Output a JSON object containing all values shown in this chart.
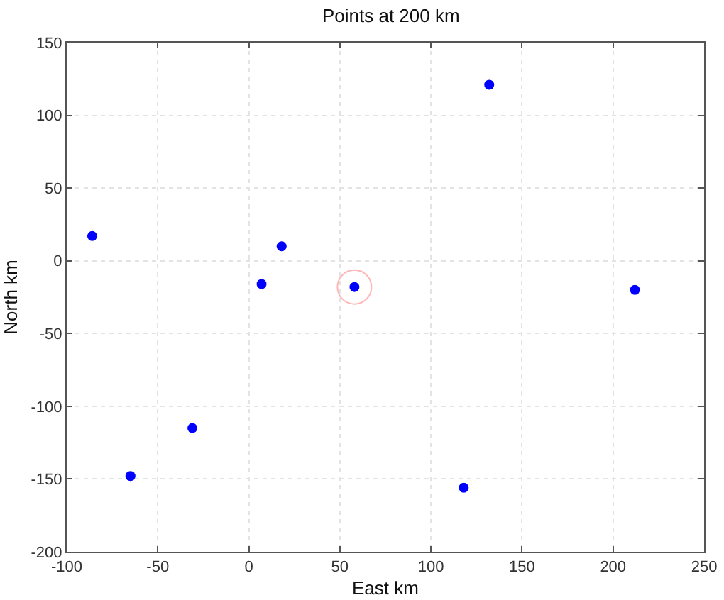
{
  "chart_data": {
    "type": "scatter",
    "title": "Points at 200 km",
    "xlabel": "East km",
    "ylabel": "North km",
    "xlim": [
      -100,
      250
    ],
    "xticks": [
      -100,
      -50,
      0,
      50,
      100,
      150,
      200,
      250
    ],
    "ylim": [
      -200,
      150
    ],
    "yticks": [
      -200,
      -150,
      -100,
      -50,
      0,
      50,
      100,
      150
    ],
    "grid": true,
    "marker": "circle",
    "legend": false,
    "series": [
      {
        "color": "#0000ff",
        "x": [
          -86,
          18,
          7,
          58,
          132,
          212,
          -31,
          -65,
          118
        ],
        "values": [
          17,
          10,
          -16,
          -18,
          121,
          -20,
          -115,
          -148,
          -156
        ]
      },
      {
        "type": "bubble",
        "color": "#ff9999",
        "x": [
          58
        ],
        "values": [
          -18
        ],
        "sizes": [
          1
        ]
      }
    ]
  }
}
